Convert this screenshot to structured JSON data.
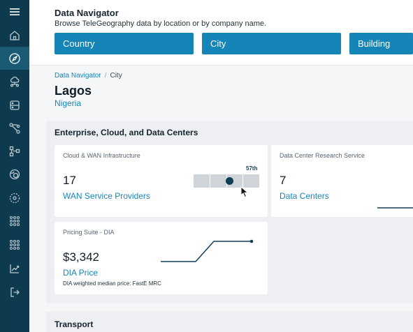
{
  "sidebar": {
    "items": [
      {
        "icon": "menu-icon"
      },
      {
        "icon": "home-icon"
      },
      {
        "icon": "compass-icon",
        "active": true
      },
      {
        "icon": "cloud-network-icon"
      },
      {
        "icon": "data-center-icon"
      },
      {
        "icon": "route-icon"
      },
      {
        "icon": "topology-icon"
      },
      {
        "icon": "globe-icon"
      },
      {
        "icon": "orbit-icon"
      },
      {
        "icon": "grid-dots-icon"
      },
      {
        "icon": "grid-dots-alt-icon"
      },
      {
        "icon": "trend-chart-icon"
      },
      {
        "icon": "logout-icon"
      }
    ]
  },
  "header": {
    "title": "Data Navigator",
    "subtitle": "Browse TeleGeography data by location or by company name.",
    "buttons": [
      "Country",
      "City",
      "Building"
    ]
  },
  "breadcrumb": {
    "root": "Data Navigator",
    "separator": "/",
    "current": "City"
  },
  "location": {
    "city": "Lagos",
    "country": "Nigeria"
  },
  "section": {
    "title": "Enterprise, Cloud, and Data Centers",
    "cards": {
      "wan": {
        "label": "Cloud & WAN Infrastructure",
        "value": "17",
        "link": "WAN Service Providers",
        "rank": "57th",
        "rank_position": 0.55
      },
      "dc": {
        "label": "Data Center Research Service",
        "value": "7",
        "link": "Data Centers"
      },
      "dia": {
        "label": "Pricing Suite - DIA",
        "value": "$3,342",
        "link": "DIA Price",
        "note": "DIA weighted median price: FastE MRC"
      }
    }
  },
  "section2": {
    "title": "Transport"
  },
  "colors": {
    "sidebar": "#0d3a4e",
    "accent": "#1585b8",
    "spark": "#0f3e56"
  }
}
